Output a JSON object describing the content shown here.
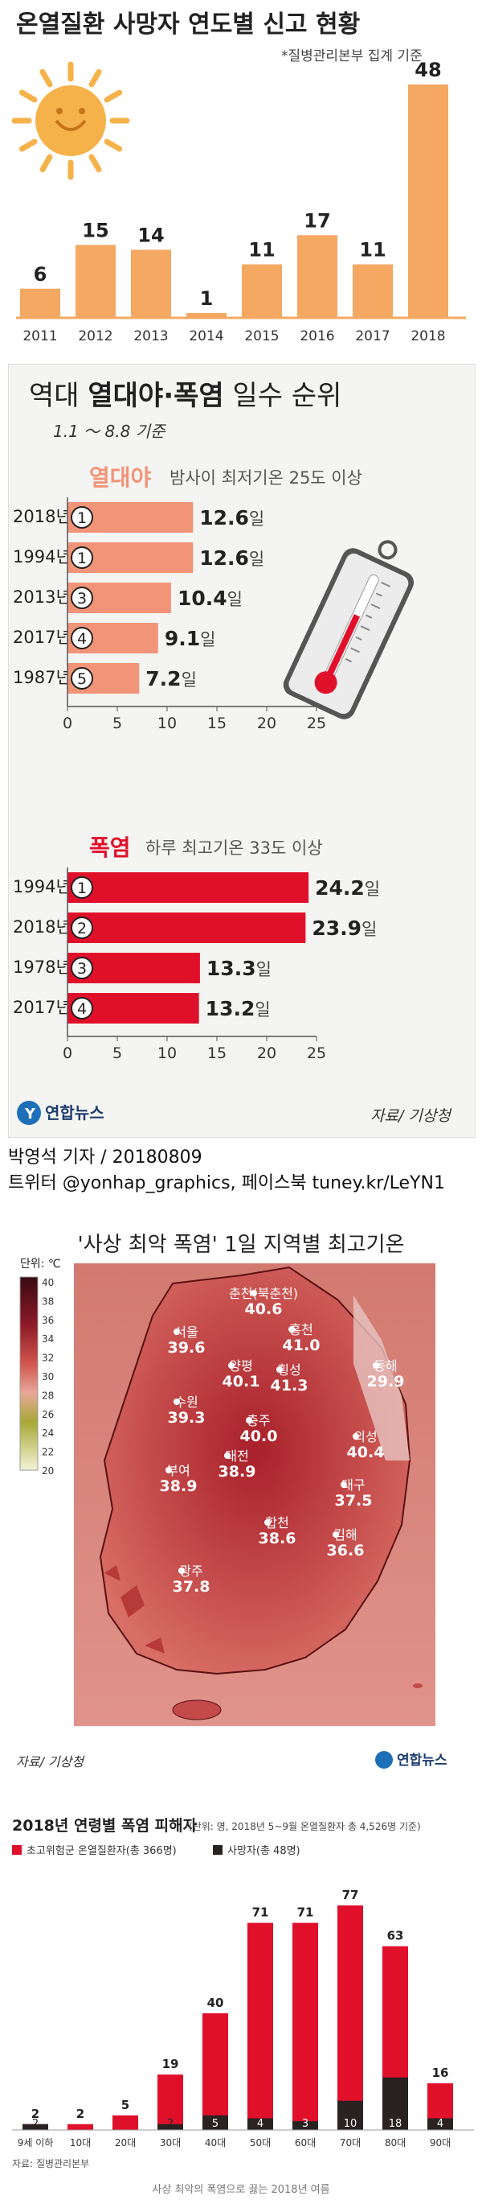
{
  "chart_data": [
    {
      "type": "bar",
      "title": "온열질환 사망자 연도별 신고 현황",
      "subtitle": "*질병관리본부 집계 기준",
      "categories": [
        "2011",
        "2012",
        "2013",
        "2014",
        "2015",
        "2016",
        "2017",
        "2018"
      ],
      "values": [
        6,
        15,
        14,
        1,
        11,
        17,
        11,
        48
      ],
      "colors": {
        "bar": "#f4a862",
        "sun": "#f6b24a"
      }
    },
    {
      "type": "bar",
      "title_parts": [
        "역대 ",
        "열대야·폭염",
        " 일수 순위"
      ],
      "subtitle": "1.1 ～ 8.8 기준",
      "groups": [
        {
          "name": "열대야",
          "desc": "밤사이 최저기온 25도 이상",
          "color": "#f19478",
          "rows": [
            {
              "year": "2018년",
              "rank": "1",
              "value": 12.6,
              "label": "12.6",
              "unit": "일"
            },
            {
              "year": "1994년",
              "rank": "1",
              "value": 12.6,
              "label": "12.6",
              "unit": "일"
            },
            {
              "year": "2013년",
              "rank": "3",
              "value": 10.4,
              "label": "10.4",
              "unit": "일"
            },
            {
              "year": "2017년",
              "rank": "4",
              "value": 9.1,
              "label": "9.1",
              "unit": "일"
            },
            {
              "year": "1987년",
              "rank": "5",
              "value": 7.2,
              "label": "7.2",
              "unit": "일"
            }
          ]
        },
        {
          "name": "폭염",
          "desc": "하루 최고기온 33도 이상",
          "color": "#e0102b",
          "rows": [
            {
              "year": "1994년",
              "rank": "1",
              "value": 24.2,
              "label": "24.2",
              "unit": "일"
            },
            {
              "year": "2018년",
              "rank": "2",
              "value": 23.9,
              "label": "23.9",
              "unit": "일"
            },
            {
              "year": "1978년",
              "rank": "3",
              "value": 13.3,
              "label": "13.3",
              "unit": "일"
            },
            {
              "year": "2017년",
              "rank": "4",
              "value": 13.2,
              "label": "13.2",
              "unit": "일"
            }
          ]
        }
      ],
      "xticks": [
        0,
        5,
        10,
        15,
        20,
        25
      ],
      "xlim": [
        0,
        25
      ]
    },
    {
      "type": "heatmap",
      "title": "'사상 최악 폭염' 1일 지역별 최고기온",
      "legend_title": "단위: ℃",
      "legend_ticks": [
        40,
        38,
        36,
        34,
        32,
        30,
        28,
        26,
        24,
        22,
        20
      ],
      "cities": [
        {
          "name": "춘천(북춘천)",
          "value": "40.6"
        },
        {
          "name": "홍천",
          "value": "41.0"
        },
        {
          "name": "서울",
          "value": "39.6"
        },
        {
          "name": "동해",
          "value": "29.9"
        },
        {
          "name": "양평",
          "value": "40.1"
        },
        {
          "name": "횡성",
          "value": "41.3"
        },
        {
          "name": "수원",
          "value": "39.3"
        },
        {
          "name": "충주",
          "value": "40.0"
        },
        {
          "name": "의성",
          "value": "40.4"
        },
        {
          "name": "대전",
          "value": "38.9"
        },
        {
          "name": "부여",
          "value": "38.9"
        },
        {
          "name": "대구",
          "value": "37.5"
        },
        {
          "name": "합천",
          "value": "38.6"
        },
        {
          "name": "김해",
          "value": "36.6"
        },
        {
          "name": "광주",
          "value": "37.8"
        }
      ],
      "source": "자료/ 기상청"
    },
    {
      "type": "bar",
      "title": "2018년 연령별 폭염 피해자",
      "note": "(단위: 명, 2018년 5~9월 온열질환자 총 4,526명 기준)",
      "series": [
        {
          "name": "초고위험군 온열질환자(총 366명)",
          "values": [
            2,
            2,
            5,
            19,
            40,
            71,
            71,
            77,
            63,
            16
          ],
          "color": "#e0102b"
        },
        {
          "name": "사망자(총 48명)",
          "values": [
            2,
            0,
            0,
            2,
            5,
            4,
            3,
            10,
            18,
            4
          ],
          "color": "#2a2121"
        }
      ],
      "categories": [
        "9세 이하",
        "10대",
        "20대",
        "30대",
        "40대",
        "50대",
        "60대",
        "70대",
        "80대",
        "90대"
      ],
      "source": "자료: 질병관리본부",
      "ylim": [
        0,
        80
      ]
    }
  ],
  "panel2": {
    "logo_text": "연합뉴스",
    "source": "자료/ 기상청"
  },
  "byline": {
    "line1": "박영석 기자 / 20180809",
    "line2": "트위터 @yonhap_graphics, 페이스북 tuney.kr/LeYN1"
  },
  "panel3": {
    "logo_text": "연합뉴스"
  },
  "footer": {
    "caption": "사상 최악의 폭염으로 끓는 2018년 여름"
  }
}
